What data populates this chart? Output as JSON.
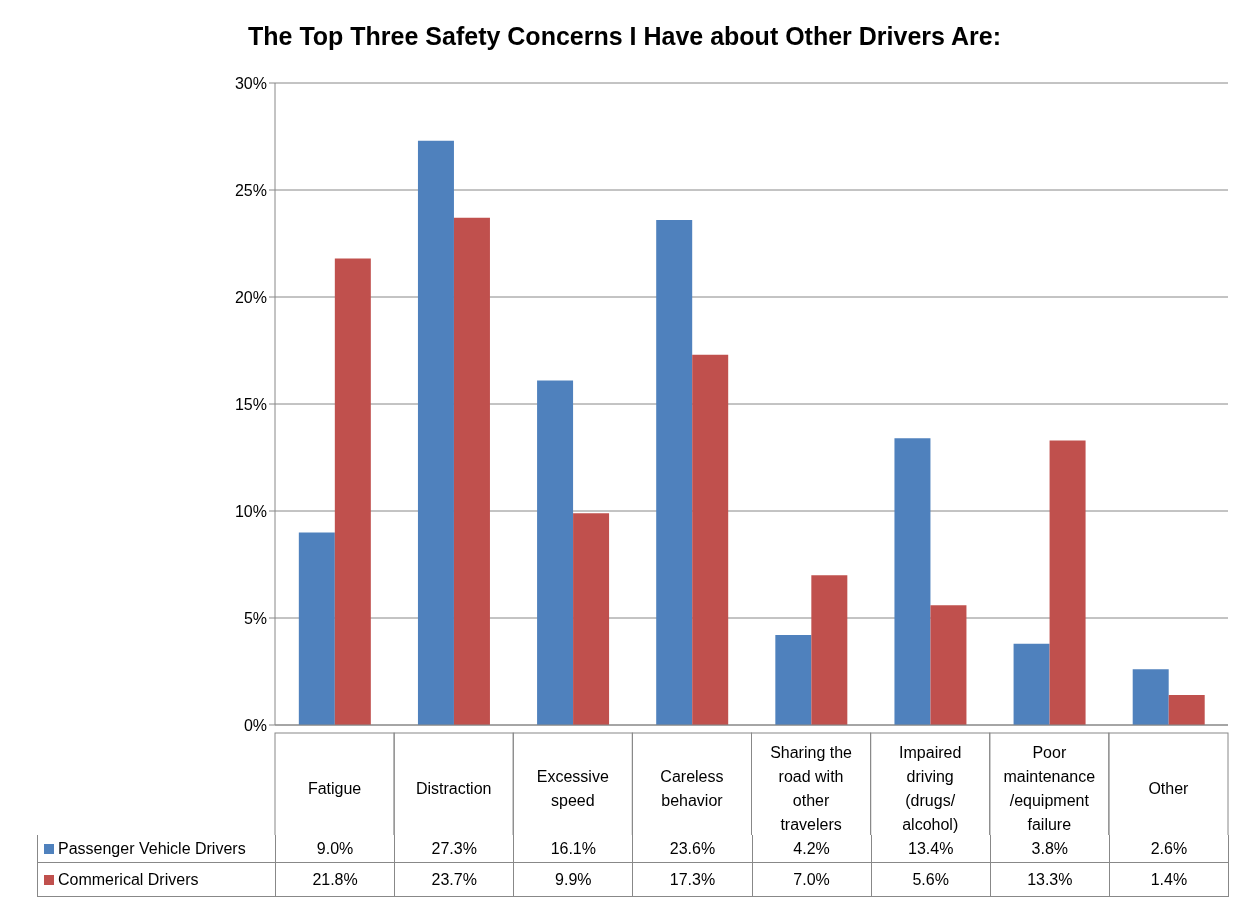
{
  "chart_data": {
    "type": "bar",
    "title": "The Top Three Safety Concerns I Have about Other Drivers Are:",
    "categories": [
      "Fatigue",
      "Distraction",
      "Excessive speed",
      "Careless behavior",
      "Sharing the road with other travelers",
      "Impaired driving (drugs/ alcohol)",
      "Poor maintenance /equipment failure",
      "Other"
    ],
    "series": [
      {
        "name": "Passenger Vehicle Drivers",
        "color": "#4f81bd",
        "values": [
          9.0,
          27.3,
          16.1,
          23.6,
          4.2,
          13.4,
          3.8,
          2.6
        ],
        "value_labels": [
          "9.0%",
          "27.3%",
          "16.1%",
          "23.6%",
          "4.2%",
          "13.4%",
          "3.8%",
          "2.6%"
        ]
      },
      {
        "name": "Commerical Drivers",
        "color": "#c0504d",
        "values": [
          21.8,
          23.7,
          9.9,
          17.3,
          7.0,
          5.6,
          13.3,
          1.4
        ],
        "value_labels": [
          "21.8%",
          "23.7%",
          "9.9%",
          "17.3%",
          "7.0%",
          "5.6%",
          "13.3%",
          "1.4%"
        ]
      }
    ],
    "ylim": [
      0,
      30
    ],
    "yticks": [
      {
        "value": 0,
        "label": "0%"
      },
      {
        "value": 5,
        "label": "5%"
      },
      {
        "value": 10,
        "label": "10%"
      },
      {
        "value": 15,
        "label": "15%"
      },
      {
        "value": 20,
        "label": "20%"
      },
      {
        "value": 25,
        "label": "25%"
      },
      {
        "value": 30,
        "label": "30%"
      }
    ],
    "grid": "y",
    "legend": "bottom"
  }
}
